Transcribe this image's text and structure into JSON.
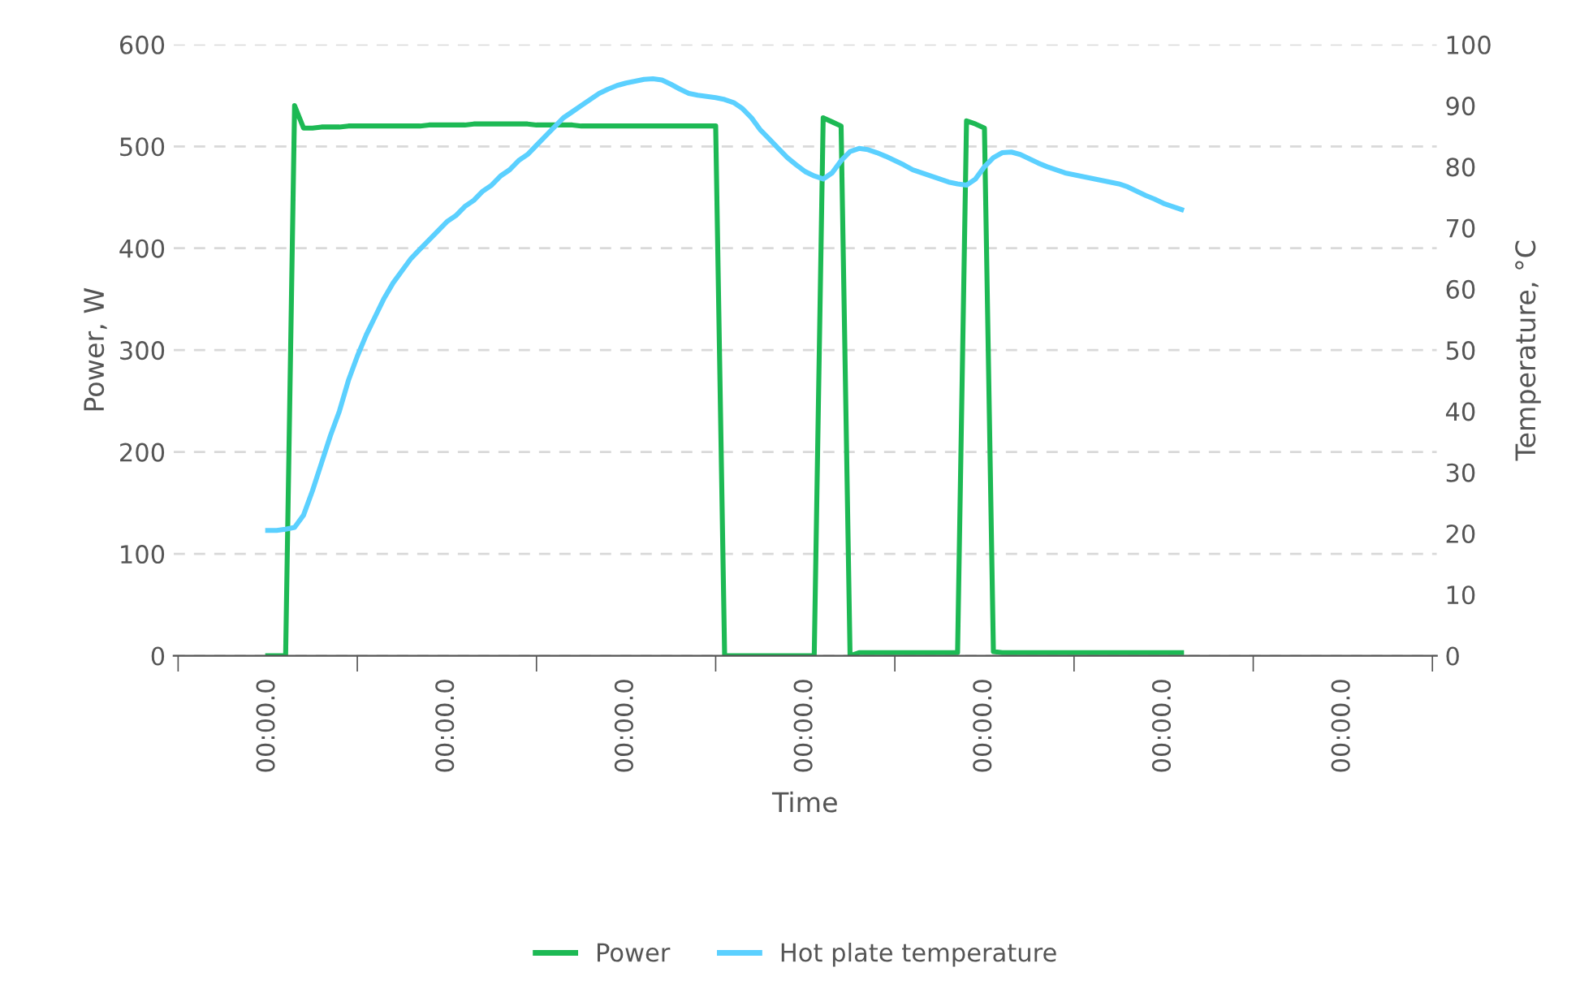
{
  "chart_data": {
    "type": "line",
    "xlabel": "Time",
    "ylabel": "Power, W",
    "y2label": "Temperature, °C",
    "categories": [
      null,
      null,
      null,
      null,
      null,
      null,
      null,
      null,
      null,
      null,
      "00:00.0",
      null,
      null,
      null,
      null,
      null,
      null,
      null,
      null,
      null,
      null,
      null,
      null,
      null,
      null,
      null,
      null,
      null,
      null,
      null,
      "00:00.0",
      null,
      null,
      null,
      null,
      null,
      null,
      null,
      null,
      null,
      null,
      null,
      null,
      null,
      null,
      null,
      null,
      null,
      null,
      null,
      "00:00.0",
      null,
      null,
      null,
      null,
      null,
      null,
      null,
      null,
      null,
      null,
      null,
      null,
      null,
      null,
      null,
      null,
      null,
      null,
      null,
      "00:00.0",
      null,
      null,
      null,
      null,
      null,
      null,
      null,
      null,
      null,
      null,
      null,
      null,
      null,
      null,
      null,
      null,
      null,
      null,
      null,
      "00:00.0",
      null,
      null,
      null,
      null,
      null,
      null,
      null,
      null,
      null,
      null,
      null,
      null,
      null,
      null,
      null,
      null,
      null,
      null,
      null,
      "00:00.0",
      null,
      null,
      null,
      null,
      null,
      null,
      null,
      null,
      null,
      null,
      null,
      null,
      null,
      null,
      null,
      null,
      null,
      null,
      null,
      "00:00.0",
      null,
      null,
      null,
      null,
      null,
      null,
      null,
      null,
      null,
      null
    ],
    "ylim": [
      0,
      600
    ],
    "yticks": [
      0,
      100,
      200,
      300,
      400,
      500,
      600
    ],
    "y2lim": [
      0,
      100
    ],
    "y2ticks": [
      0,
      10,
      20,
      30,
      40,
      50,
      60,
      70,
      80,
      90,
      100
    ],
    "grid": "y",
    "legend": "bottom",
    "marker": "none",
    "line_style": "solid",
    "series": [
      {
        "name": "Power",
        "color": "#1db954",
        "values": [
          null,
          null,
          null,
          null,
          null,
          null,
          null,
          null,
          null,
          null,
          0,
          0,
          0,
          540,
          518,
          518,
          519,
          519,
          519,
          520,
          520,
          520,
          520,
          520,
          520,
          520,
          520,
          520,
          521,
          521,
          521,
          521,
          521,
          522,
          522,
          522,
          522,
          522,
          522,
          522,
          521,
          521,
          521,
          521,
          521,
          520,
          520,
          520,
          520,
          520,
          520,
          520,
          520,
          520,
          520,
          520,
          520,
          520,
          520,
          520,
          520,
          0,
          0,
          0,
          0,
          0,
          0,
          0,
          0,
          0,
          0,
          0,
          528,
          524,
          520,
          0,
          3,
          3,
          3,
          3,
          3,
          3,
          3,
          3,
          3,
          3,
          3,
          3,
          525,
          522,
          518,
          4,
          3,
          3,
          3,
          3,
          3,
          3,
          3,
          3,
          3,
          3,
          3,
          3,
          3,
          3,
          3,
          3,
          3,
          3,
          3,
          3,
          3,
          null,
          null,
          null,
          null,
          null,
          null,
          null,
          null,
          null,
          null,
          null,
          null,
          null,
          null,
          null,
          null,
          null,
          null,
          null,
          null,
          null,
          null,
          null,
          null,
          null,
          null,
          null,
          null
        ]
      },
      {
        "name": "Hot plate temperature",
        "color": "#5bd0ff",
        "axis": "y2",
        "values": [
          null,
          null,
          null,
          null,
          null,
          null,
          null,
          null,
          null,
          null,
          20.5,
          20.5,
          20.7,
          21,
          23,
          27,
          31.5,
          36,
          40,
          45,
          49,
          52.5,
          55.5,
          58.5,
          61,
          63,
          65,
          66.5,
          68,
          69.5,
          71,
          72,
          73.5,
          74.5,
          76,
          77,
          78.5,
          79.5,
          81,
          82,
          83.5,
          85,
          86.5,
          88,
          89,
          90,
          91,
          92,
          92.7,
          93.3,
          93.7,
          94,
          94.3,
          94.4,
          94.2,
          93.5,
          92.7,
          92,
          91.7,
          91.5,
          91.3,
          91,
          90.5,
          89.5,
          88,
          86,
          84.5,
          83,
          81.5,
          80.3,
          79.2,
          78.5,
          78,
          79,
          81,
          82.5,
          83,
          82.8,
          82.3,
          81.7,
          81,
          80.3,
          79.5,
          79,
          78.5,
          78,
          77.5,
          77.2,
          77,
          78,
          80,
          81.5,
          82.3,
          82.4,
          82,
          81.3,
          80.6,
          80,
          79.5,
          79,
          78.7,
          78.4,
          78.1,
          77.8,
          77.5,
          77.2,
          76.7,
          76,
          75.3,
          74.7,
          74,
          73.5,
          73,
          null,
          null,
          null,
          null,
          null,
          null,
          null,
          null,
          null,
          null,
          null,
          null,
          null,
          null,
          null,
          null,
          null,
          null,
          null,
          null,
          null,
          null,
          null,
          null,
          null,
          null,
          null,
          null
        ]
      }
    ]
  }
}
